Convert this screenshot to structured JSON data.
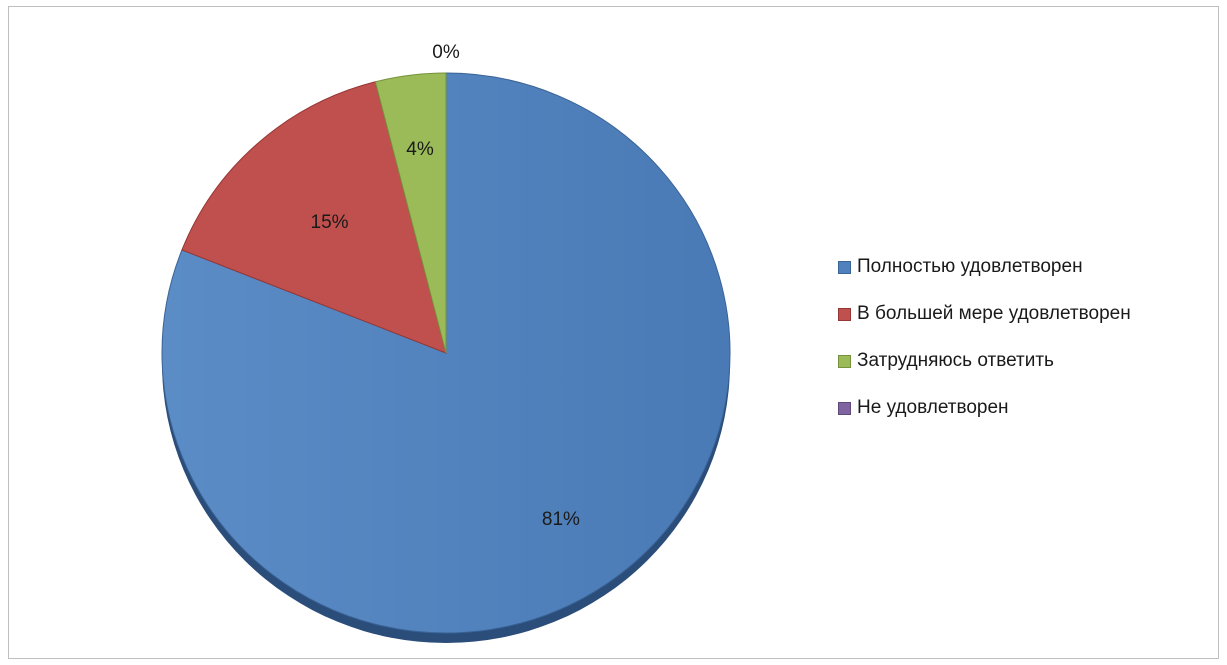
{
  "chart_data": {
    "type": "pie",
    "title": "",
    "series": [
      {
        "values": [
          81,
          15,
          4,
          0
        ]
      }
    ],
    "categories": [
      "Полностью удовлетворен",
      "В большей мере удовлетворен",
      "Затрудняюсь ответить",
      "Не удовлетворен"
    ],
    "data_labels": [
      "81%",
      "15%",
      "4%",
      "0%"
    ],
    "colors": [
      "#4f81bd",
      "#c0504d",
      "#9bbb59",
      "#8064a2"
    ],
    "edge_colors": [
      "#3a6396",
      "#953735",
      "#76923c",
      "#604a7b"
    ],
    "legend_position": "right",
    "start_angle": "top, clockwise"
  }
}
